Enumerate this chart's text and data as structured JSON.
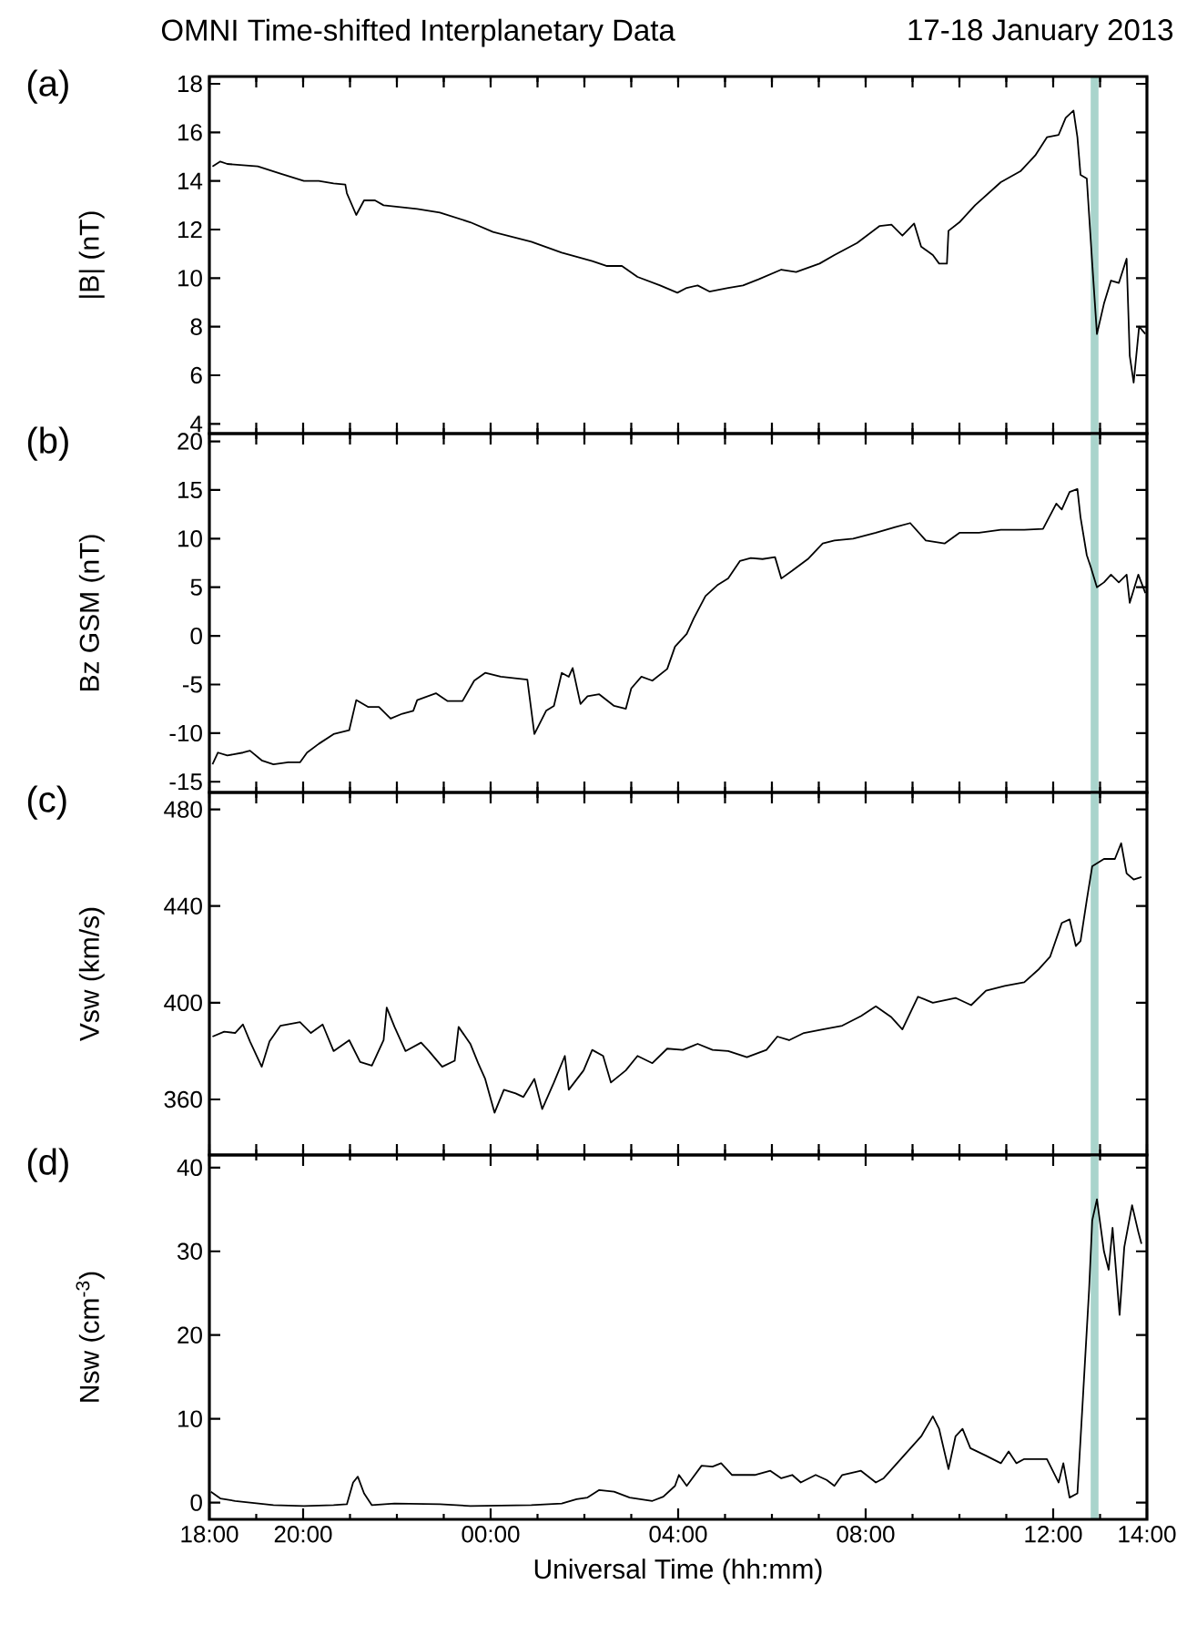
{
  "chart_data": [
    {
      "type": "line",
      "title": "OMNI Time-shifted Interplanetary Data",
      "subtitle": "17-18 January 2013",
      "ylabel": "|B|  (nT)",
      "annotations": [
        "(a)"
      ],
      "color": "#000000",
      "tick_labels": "y",
      "xlim": [
        "2013-01-17T18:00",
        "2013-01-18T14:00"
      ],
      "ylim": [
        3.6,
        18.3
      ],
      "yticks": [
        4,
        6,
        8,
        10,
        12,
        14,
        16,
        18
      ],
      "xticks": [
        {
          "value": "2013-01-17T18:00",
          "label": null
        },
        {
          "value": "2013-01-17T19:00",
          "label": null
        },
        {
          "value": "2013-01-17T20:00",
          "label": null
        },
        {
          "value": "2013-01-17T21:00",
          "label": null
        },
        {
          "value": "2013-01-17T22:00",
          "label": null
        },
        {
          "value": "2013-01-17T23:00",
          "label": null
        },
        {
          "value": "2013-01-18T00:00",
          "label": null
        },
        {
          "value": "2013-01-18T01:00",
          "label": null
        },
        {
          "value": "2013-01-18T02:00",
          "label": null
        },
        {
          "value": "2013-01-18T03:00",
          "label": null
        },
        {
          "value": "2013-01-18T04:00",
          "label": null
        },
        {
          "value": "2013-01-18T05:00",
          "label": null
        },
        {
          "value": "2013-01-18T06:00",
          "label": null
        },
        {
          "value": "2013-01-18T07:00",
          "label": null
        },
        {
          "value": "2013-01-18T08:00",
          "label": null
        },
        {
          "value": "2013-01-18T09:00",
          "label": null
        },
        {
          "value": "2013-01-18T10:00",
          "label": null
        },
        {
          "value": "2013-01-18T11:00",
          "label": null
        },
        {
          "value": "2013-01-18T12:00",
          "label": null
        },
        {
          "value": "2013-01-18T13:00",
          "label": null
        },
        {
          "value": "2013-01-18T14:00",
          "label": null
        }
      ],
      "bands": [
        {
          "axis": "x",
          "from": "2013-01-18T12:48",
          "to": "2013-01-18T12:58",
          "color": "#a9d4cc"
        }
      ],
      "x": [
        "2013-01-17T18:04",
        "2013-01-17T18:14",
        "2013-01-17T18:23",
        "2013-01-17T19:02",
        "2013-01-17T19:31",
        "2013-01-17T20:01",
        "2013-01-17T20:20",
        "2013-01-17T20:39",
        "2013-01-17T20:54",
        "2013-01-17T20:56",
        "2013-01-17T21:08",
        "2013-01-17T21:18",
        "2013-01-17T21:32",
        "2013-01-17T21:43",
        "2013-01-17T22:26",
        "2013-01-17T22:55",
        "2013-01-17T23:34",
        "2013-01-18T00:03",
        "2013-01-18T00:52",
        "2013-01-18T01:31",
        "2013-01-18T02:10",
        "2013-01-18T02:29",
        "2013-01-18T02:48",
        "2013-01-18T03:08",
        "2013-01-18T03:37",
        "2013-01-18T03:59",
        "2013-01-18T04:11",
        "2013-01-18T04:25",
        "2013-01-18T04:40",
        "2013-01-18T05:04",
        "2013-01-18T05:23",
        "2013-01-18T05:43",
        "2013-01-18T06:12",
        "2013-01-18T06:31",
        "2013-01-18T07:01",
        "2013-01-18T07:20",
        "2013-01-18T07:49",
        "2013-01-18T08:18",
        "2013-01-18T08:33",
        "2013-01-18T08:47",
        "2013-01-18T09:02",
        "2013-01-18T09:11",
        "2013-01-18T09:26",
        "2013-01-18T09:34",
        "2013-01-18T09:44",
        "2013-01-18T09:46",
        "2013-01-18T10:00",
        "2013-01-18T10:20",
        "2013-01-18T10:53",
        "2013-01-18T11:18",
        "2013-01-18T11:37",
        "2013-01-18T11:52",
        "2013-01-18T12:07",
        "2013-01-18T12:16",
        "2013-01-18T12:26",
        "2013-01-18T12:31",
        "2013-01-18T12:35",
        "2013-01-18T12:43",
        "2013-01-18T12:50",
        "2013-01-18T12:56",
        "2013-01-18T13:05",
        "2013-01-18T13:14",
        "2013-01-18T13:24",
        "2013-01-18T13:34",
        "2013-01-18T13:38",
        "2013-01-18T13:43",
        "2013-01-18T13:50",
        "2013-01-18T13:58"
      ],
      "values": [
        14.6,
        14.8,
        14.7,
        14.6,
        14.3,
        14.0,
        14.0,
        13.9,
        13.85,
        13.5,
        12.6,
        13.2,
        13.2,
        13.0,
        12.85,
        12.7,
        12.3,
        11.9,
        11.5,
        11.05,
        10.7,
        10.5,
        10.5,
        10.05,
        9.7,
        9.4,
        9.6,
        9.7,
        9.45,
        9.6,
        9.7,
        9.95,
        10.35,
        10.25,
        10.6,
        10.95,
        11.45,
        12.15,
        12.2,
        11.75,
        12.25,
        11.3,
        10.95,
        10.6,
        10.6,
        11.95,
        12.3,
        13.0,
        13.95,
        14.4,
        15.05,
        15.8,
        15.9,
        16.6,
        16.9,
        15.8,
        14.25,
        14.1,
        10.6,
        7.7,
        8.95,
        9.9,
        9.8,
        10.8,
        6.8,
        5.7,
        8.0,
        7.7
      ]
    },
    {
      "type": "line",
      "ylabel": "Bz GSM  (nT)",
      "annotations": [
        "(b)"
      ],
      "color": "#000000",
      "tick_labels": "y",
      "xlim": [
        "2013-01-17T18:00",
        "2013-01-18T14:00"
      ],
      "ylim": [
        -16.1,
        20.8
      ],
      "yticks": [
        -15,
        -10,
        -5,
        0,
        5,
        10,
        15,
        20
      ],
      "xticks": [
        {
          "value": "2013-01-17T18:00",
          "label": null
        },
        {
          "value": "2013-01-17T19:00",
          "label": null
        },
        {
          "value": "2013-01-17T20:00",
          "label": null
        },
        {
          "value": "2013-01-17T21:00",
          "label": null
        },
        {
          "value": "2013-01-17T22:00",
          "label": null
        },
        {
          "value": "2013-01-17T23:00",
          "label": null
        },
        {
          "value": "2013-01-18T00:00",
          "label": null
        },
        {
          "value": "2013-01-18T01:00",
          "label": null
        },
        {
          "value": "2013-01-18T02:00",
          "label": null
        },
        {
          "value": "2013-01-18T03:00",
          "label": null
        },
        {
          "value": "2013-01-18T04:00",
          "label": null
        },
        {
          "value": "2013-01-18T05:00",
          "label": null
        },
        {
          "value": "2013-01-18T06:00",
          "label": null
        },
        {
          "value": "2013-01-18T07:00",
          "label": null
        },
        {
          "value": "2013-01-18T08:00",
          "label": null
        },
        {
          "value": "2013-01-18T09:00",
          "label": null
        },
        {
          "value": "2013-01-18T10:00",
          "label": null
        },
        {
          "value": "2013-01-18T11:00",
          "label": null
        },
        {
          "value": "2013-01-18T12:00",
          "label": null
        },
        {
          "value": "2013-01-18T13:00",
          "label": null
        },
        {
          "value": "2013-01-18T14:00",
          "label": null
        }
      ],
      "bands": [
        {
          "axis": "x",
          "from": "2013-01-18T12:48",
          "to": "2013-01-18T12:58",
          "color": "#a9d4cc"
        }
      ],
      "x": [
        "2013-01-17T18:04",
        "2013-01-17T18:11",
        "2013-01-17T18:23",
        "2013-01-17T18:43",
        "2013-01-17T18:52",
        "2013-01-17T19:07",
        "2013-01-17T19:22",
        "2013-01-17T19:41",
        "2013-01-17T19:56",
        "2013-01-17T20:05",
        "2013-01-17T20:20",
        "2013-01-17T20:39",
        "2013-01-17T20:59",
        "2013-01-17T21:08",
        "2013-01-17T21:23",
        "2013-01-17T21:37",
        "2013-01-17T21:52",
        "2013-01-17T22:07",
        "2013-01-17T22:21",
        "2013-01-17T22:26",
        "2013-01-17T22:50",
        "2013-01-17T23:05",
        "2013-01-17T23:24",
        "2013-01-17T23:39",
        "2013-01-17T23:53",
        "2013-01-18T00:13",
        "2013-01-18T00:47",
        "2013-01-18T00:56",
        "2013-01-18T01:11",
        "2013-01-18T01:21",
        "2013-01-18T01:31",
        "2013-01-18T01:40",
        "2013-01-18T01:45",
        "2013-01-18T01:55",
        "2013-01-18T02:04",
        "2013-01-18T02:19",
        "2013-01-18T02:38",
        "2013-01-18T02:53",
        "2013-01-18T03:00",
        "2013-01-18T03:13",
        "2013-01-18T03:27",
        "2013-01-18T03:46",
        "2013-01-18T03:56",
        "2013-01-18T04:11",
        "2013-01-18T04:20",
        "2013-01-18T04:35",
        "2013-01-18T04:50",
        "2013-01-18T05:04",
        "2013-01-18T05:19",
        "2013-01-18T05:33",
        "2013-01-18T05:48",
        "2013-01-18T06:04",
        "2013-01-18T06:12",
        "2013-01-18T06:26",
        "2013-01-18T06:46",
        "2013-01-18T07:05",
        "2013-01-18T07:20",
        "2013-01-18T07:44",
        "2013-01-18T08:13",
        "2013-01-18T08:38",
        "2013-01-18T08:57",
        "2013-01-18T09:17",
        "2013-01-18T09:41",
        "2013-01-18T10:00",
        "2013-01-18T10:25",
        "2013-01-18T10:53",
        "2013-01-18T11:23",
        "2013-01-18T11:47",
        "2013-01-18T12:04",
        "2013-01-18T12:11",
        "2013-01-18T12:21",
        "2013-01-18T12:31",
        "2013-01-18T12:35",
        "2013-01-18T12:43",
        "2013-01-18T12:48",
        "2013-01-18T12:56",
        "2013-01-18T13:05",
        "2013-01-18T13:14",
        "2013-01-18T13:24",
        "2013-01-18T13:34",
        "2013-01-18T13:38",
        "2013-01-18T13:49",
        "2013-01-18T13:58"
      ],
      "values": [
        -13.2,
        -12.0,
        -12.3,
        -12.0,
        -11.8,
        -12.8,
        -13.2,
        -13.0,
        -13.0,
        -12.0,
        -11.1,
        -10.1,
        -9.7,
        -6.6,
        -7.3,
        -7.3,
        -8.5,
        -8.0,
        -7.7,
        -6.6,
        -5.9,
        -6.7,
        -6.7,
        -4.6,
        -3.8,
        -4.2,
        -4.5,
        -10.1,
        -7.7,
        -7.2,
        -3.8,
        -4.2,
        -3.3,
        -7.0,
        -6.2,
        -6.0,
        -7.2,
        -7.5,
        -5.4,
        -4.2,
        -4.6,
        -3.4,
        -1.1,
        0.2,
        1.8,
        4.1,
        5.2,
        5.9,
        7.7,
        8.0,
        7.9,
        8.1,
        5.9,
        6.7,
        7.9,
        9.5,
        9.8,
        10.0,
        10.6,
        11.2,
        11.6,
        9.8,
        9.5,
        10.6,
        10.6,
        10.9,
        10.9,
        11.0,
        13.6,
        13.0,
        14.8,
        15.1,
        12.2,
        8.3,
        7.1,
        5.0,
        5.5,
        6.3,
        5.5,
        6.3,
        3.4,
        6.3,
        4.4
      ]
    },
    {
      "type": "line",
      "ylabel": "Vsw  (km/s)",
      "annotations": [
        "(c)"
      ],
      "color": "#000000",
      "tick_labels": "y",
      "xlim": [
        "2013-01-17T18:00",
        "2013-01-18T14:00"
      ],
      "ylim": [
        337,
        487
      ],
      "yticks": [
        360,
        400,
        440,
        480
      ],
      "xticks": [
        {
          "value": "2013-01-17T18:00",
          "label": null
        },
        {
          "value": "2013-01-17T19:00",
          "label": null
        },
        {
          "value": "2013-01-17T20:00",
          "label": null
        },
        {
          "value": "2013-01-17T21:00",
          "label": null
        },
        {
          "value": "2013-01-17T22:00",
          "label": null
        },
        {
          "value": "2013-01-17T23:00",
          "label": null
        },
        {
          "value": "2013-01-18T00:00",
          "label": null
        },
        {
          "value": "2013-01-18T01:00",
          "label": null
        },
        {
          "value": "2013-01-18T02:00",
          "label": null
        },
        {
          "value": "2013-01-18T03:00",
          "label": null
        },
        {
          "value": "2013-01-18T04:00",
          "label": null
        },
        {
          "value": "2013-01-18T05:00",
          "label": null
        },
        {
          "value": "2013-01-18T06:00",
          "label": null
        },
        {
          "value": "2013-01-18T07:00",
          "label": null
        },
        {
          "value": "2013-01-18T08:00",
          "label": null
        },
        {
          "value": "2013-01-18T09:00",
          "label": null
        },
        {
          "value": "2013-01-18T10:00",
          "label": null
        },
        {
          "value": "2013-01-18T11:00",
          "label": null
        },
        {
          "value": "2013-01-18T12:00",
          "label": null
        },
        {
          "value": "2013-01-18T13:00",
          "label": null
        },
        {
          "value": "2013-01-18T14:00",
          "label": null
        }
      ],
      "bands": [
        {
          "axis": "x",
          "from": "2013-01-18T12:48",
          "to": "2013-01-18T12:58",
          "color": "#a9d4cc"
        }
      ],
      "x": [
        "2013-01-17T18:04",
        "2013-01-17T18:19",
        "2013-01-17T18:33",
        "2013-01-17T18:43",
        "2013-01-17T18:52",
        "2013-01-17T19:07",
        "2013-01-17T19:17",
        "2013-01-17T19:31",
        "2013-01-17T19:56",
        "2013-01-17T20:10",
        "2013-01-17T20:25",
        "2013-01-17T20:39",
        "2013-01-17T20:59",
        "2013-01-17T21:13",
        "2013-01-17T21:28",
        "2013-01-17T21:43",
        "2013-01-17T21:47",
        "2013-01-17T21:57",
        "2013-01-17T22:11",
        "2013-01-17T22:31",
        "2013-01-17T22:41",
        "2013-01-17T22:58",
        "2013-01-17T23:14",
        "2013-01-17T23:19",
        "2013-01-17T23:34",
        "2013-01-17T23:44",
        "2013-01-17T23:53",
        "2013-01-18T00:05",
        "2013-01-18T00:17",
        "2013-01-18T00:32",
        "2013-01-18T00:42",
        "2013-01-18T00:56",
        "2013-01-18T01:06",
        "2013-01-18T01:21",
        "2013-01-18T01:35",
        "2013-01-18T01:40",
        "2013-01-18T01:59",
        "2013-01-18T02:10",
        "2013-01-18T02:24",
        "2013-01-18T02:34",
        "2013-01-18T02:53",
        "2013-01-18T03:08",
        "2013-01-18T03:27",
        "2013-01-18T03:46",
        "2013-01-18T04:06",
        "2013-01-18T04:25",
        "2013-01-18T04:44",
        "2013-01-18T05:04",
        "2013-01-18T05:28",
        "2013-01-18T05:53",
        "2013-01-18T06:07",
        "2013-01-18T06:22",
        "2013-01-18T06:41",
        "2013-01-18T07:05",
        "2013-01-18T07:30",
        "2013-01-18T07:54",
        "2013-01-18T08:13",
        "2013-01-18T08:33",
        "2013-01-18T08:47",
        "2013-01-18T09:07",
        "2013-01-18T09:26",
        "2013-01-18T09:55",
        "2013-01-18T10:15",
        "2013-01-18T10:34",
        "2013-01-18T10:58",
        "2013-01-18T11:23",
        "2013-01-18T11:42",
        "2013-01-18T11:56",
        "2013-01-18T12:11",
        "2013-01-18T12:21",
        "2013-01-18T12:29",
        "2013-01-18T12:35",
        "2013-01-18T12:43",
        "2013-01-18T12:50",
        "2013-01-18T13:05",
        "2013-01-18T13:19",
        "2013-01-18T13:27",
        "2013-01-18T13:34",
        "2013-01-18T13:43",
        "2013-01-18T13:53"
      ],
      "values": [
        386,
        388,
        387.5,
        391,
        384,
        373.5,
        384,
        390.5,
        392,
        387.5,
        391,
        380,
        384.5,
        375.5,
        374,
        384.5,
        398,
        390,
        380,
        383.5,
        380,
        373.5,
        376,
        390,
        383,
        375,
        368.5,
        354.5,
        364,
        362.5,
        361,
        368.5,
        356,
        367,
        378,
        364,
        372,
        380.5,
        378,
        367,
        372,
        378,
        375,
        381,
        380.5,
        383,
        380.5,
        380,
        377.5,
        380.5,
        386,
        384.5,
        387.5,
        389,
        390.5,
        394.5,
        398.5,
        394,
        389,
        402.5,
        400,
        402,
        399,
        405,
        407,
        408.5,
        414,
        419,
        433,
        434.5,
        423.5,
        425.5,
        442.5,
        456.5,
        459.5,
        459.5,
        466,
        453.5,
        451,
        452
      ]
    },
    {
      "type": "line",
      "ylabel": "Nsw  (cm$^{-3}$)",
      "xlabel": "Universal Time  (hh:mm)",
      "annotations": [
        "(d)"
      ],
      "color": "#000000",
      "xlim": [
        "2013-01-17T18:00",
        "2013-01-18T14:00"
      ],
      "ylim": [
        -2,
        41.5
      ],
      "yticks": [
        0,
        10,
        20,
        30,
        40
      ],
      "xticks": [
        {
          "value": "2013-01-17T18:00",
          "label": "18:00"
        },
        {
          "value": "2013-01-17T19:00",
          "label": null
        },
        {
          "value": "2013-01-17T20:00",
          "label": "20:00"
        },
        {
          "value": "2013-01-17T21:00",
          "label": null
        },
        {
          "value": "2013-01-17T22:00",
          "label": null
        },
        {
          "value": "2013-01-17T23:00",
          "label": null
        },
        {
          "value": "2013-01-18T00:00",
          "label": "00:00"
        },
        {
          "value": "2013-01-18T01:00",
          "label": null
        },
        {
          "value": "2013-01-18T02:00",
          "label": null
        },
        {
          "value": "2013-01-18T03:00",
          "label": null
        },
        {
          "value": "2013-01-18T04:00",
          "label": "04:00"
        },
        {
          "value": "2013-01-18T05:00",
          "label": null
        },
        {
          "value": "2013-01-18T06:00",
          "label": null
        },
        {
          "value": "2013-01-18T07:00",
          "label": null
        },
        {
          "value": "2013-01-18T08:00",
          "label": "08:00"
        },
        {
          "value": "2013-01-18T09:00",
          "label": null
        },
        {
          "value": "2013-01-18T10:00",
          "label": null
        },
        {
          "value": "2013-01-18T11:00",
          "label": null
        },
        {
          "value": "2013-01-18T12:00",
          "label": "12:00"
        },
        {
          "value": "2013-01-18T13:00",
          "label": null
        },
        {
          "value": "2013-01-18T14:00",
          "label": "14:00"
        }
      ],
      "bands": [
        {
          "axis": "x",
          "from": "2013-01-18T12:48",
          "to": "2013-01-18T12:58",
          "color": "#a9d4cc"
        }
      ],
      "x": [
        "2013-01-17T18:02",
        "2013-01-17T18:14",
        "2013-01-17T18:33",
        "2013-01-17T18:52",
        "2013-01-17T19:22",
        "2013-01-17T20:01",
        "2013-01-17T20:39",
        "2013-01-17T20:56",
        "2013-01-17T21:04",
        "2013-01-17T21:10",
        "2013-01-17T21:18",
        "2013-01-17T21:28",
        "2013-01-17T21:57",
        "2013-01-17T22:55",
        "2013-01-17T23:34",
        "2013-01-18T00:52",
        "2013-01-18T01:31",
        "2013-01-18T01:50",
        "2013-01-18T02:04",
        "2013-01-18T02:19",
        "2013-01-18T02:38",
        "2013-01-18T02:58",
        "2013-01-18T03:27",
        "2013-01-18T03:41",
        "2013-01-18T03:56",
        "2013-01-18T04:01",
        "2013-01-18T04:11",
        "2013-01-18T04:30",
        "2013-01-18T04:44",
        "2013-01-18T04:55",
        "2013-01-18T05:09",
        "2013-01-18T05:38",
        "2013-01-18T05:58",
        "2013-01-18T06:12",
        "2013-01-18T06:26",
        "2013-01-18T06:37",
        "2013-01-18T06:56",
        "2013-01-18T07:10",
        "2013-01-18T07:20",
        "2013-01-18T07:30",
        "2013-01-18T07:54",
        "2013-01-18T08:13",
        "2013-01-18T08:23",
        "2013-01-18T09:11",
        "2013-01-18T09:26",
        "2013-01-18T09:34",
        "2013-01-18T09:46",
        "2013-01-18T09:55",
        "2013-01-18T10:04",
        "2013-01-18T10:14",
        "2013-01-18T10:34",
        "2013-01-18T10:53",
        "2013-01-18T11:03",
        "2013-01-18T11:13",
        "2013-01-18T11:23",
        "2013-01-18T11:52",
        "2013-01-18T12:07",
        "2013-01-18T12:13",
        "2013-01-18T12:21",
        "2013-01-18T12:31",
        "2013-01-18T12:38",
        "2013-01-18T12:46",
        "2013-01-18T12:50",
        "2013-01-18T12:56",
        "2013-01-18T13:05",
        "2013-01-18T13:11",
        "2013-01-18T13:16",
        "2013-01-18T13:25",
        "2013-01-18T13:31",
        "2013-01-18T13:41",
        "2013-01-18T13:49",
        "2013-01-18T13:53"
      ],
      "values": [
        1.3,
        0.5,
        0.2,
        0,
        -0.3,
        -0.4,
        -0.3,
        -0.2,
        2.4,
        3.1,
        1.1,
        -0.3,
        -0.1,
        -0.2,
        -0.4,
        -0.3,
        -0.1,
        0.4,
        0.6,
        1.5,
        1.3,
        0.6,
        0.2,
        0.7,
        2.0,
        3.3,
        2.0,
        4.4,
        4.3,
        4.7,
        3.3,
        3.3,
        3.8,
        2.9,
        3.3,
        2.4,
        3.3,
        2.7,
        2.0,
        3.3,
        3.8,
        2.4,
        2.9,
        7.9,
        10.3,
        8.8,
        4.0,
        7.9,
        8.8,
        6.5,
        5.6,
        4.7,
        6.1,
        4.7,
        5.2,
        5.2,
        2.4,
        4.7,
        0.6,
        1.1,
        12.4,
        25.5,
        33.7,
        36.2,
        30.0,
        27.8,
        32.8,
        22.4,
        30.5,
        35.5,
        32.3,
        30.9
      ]
    }
  ]
}
